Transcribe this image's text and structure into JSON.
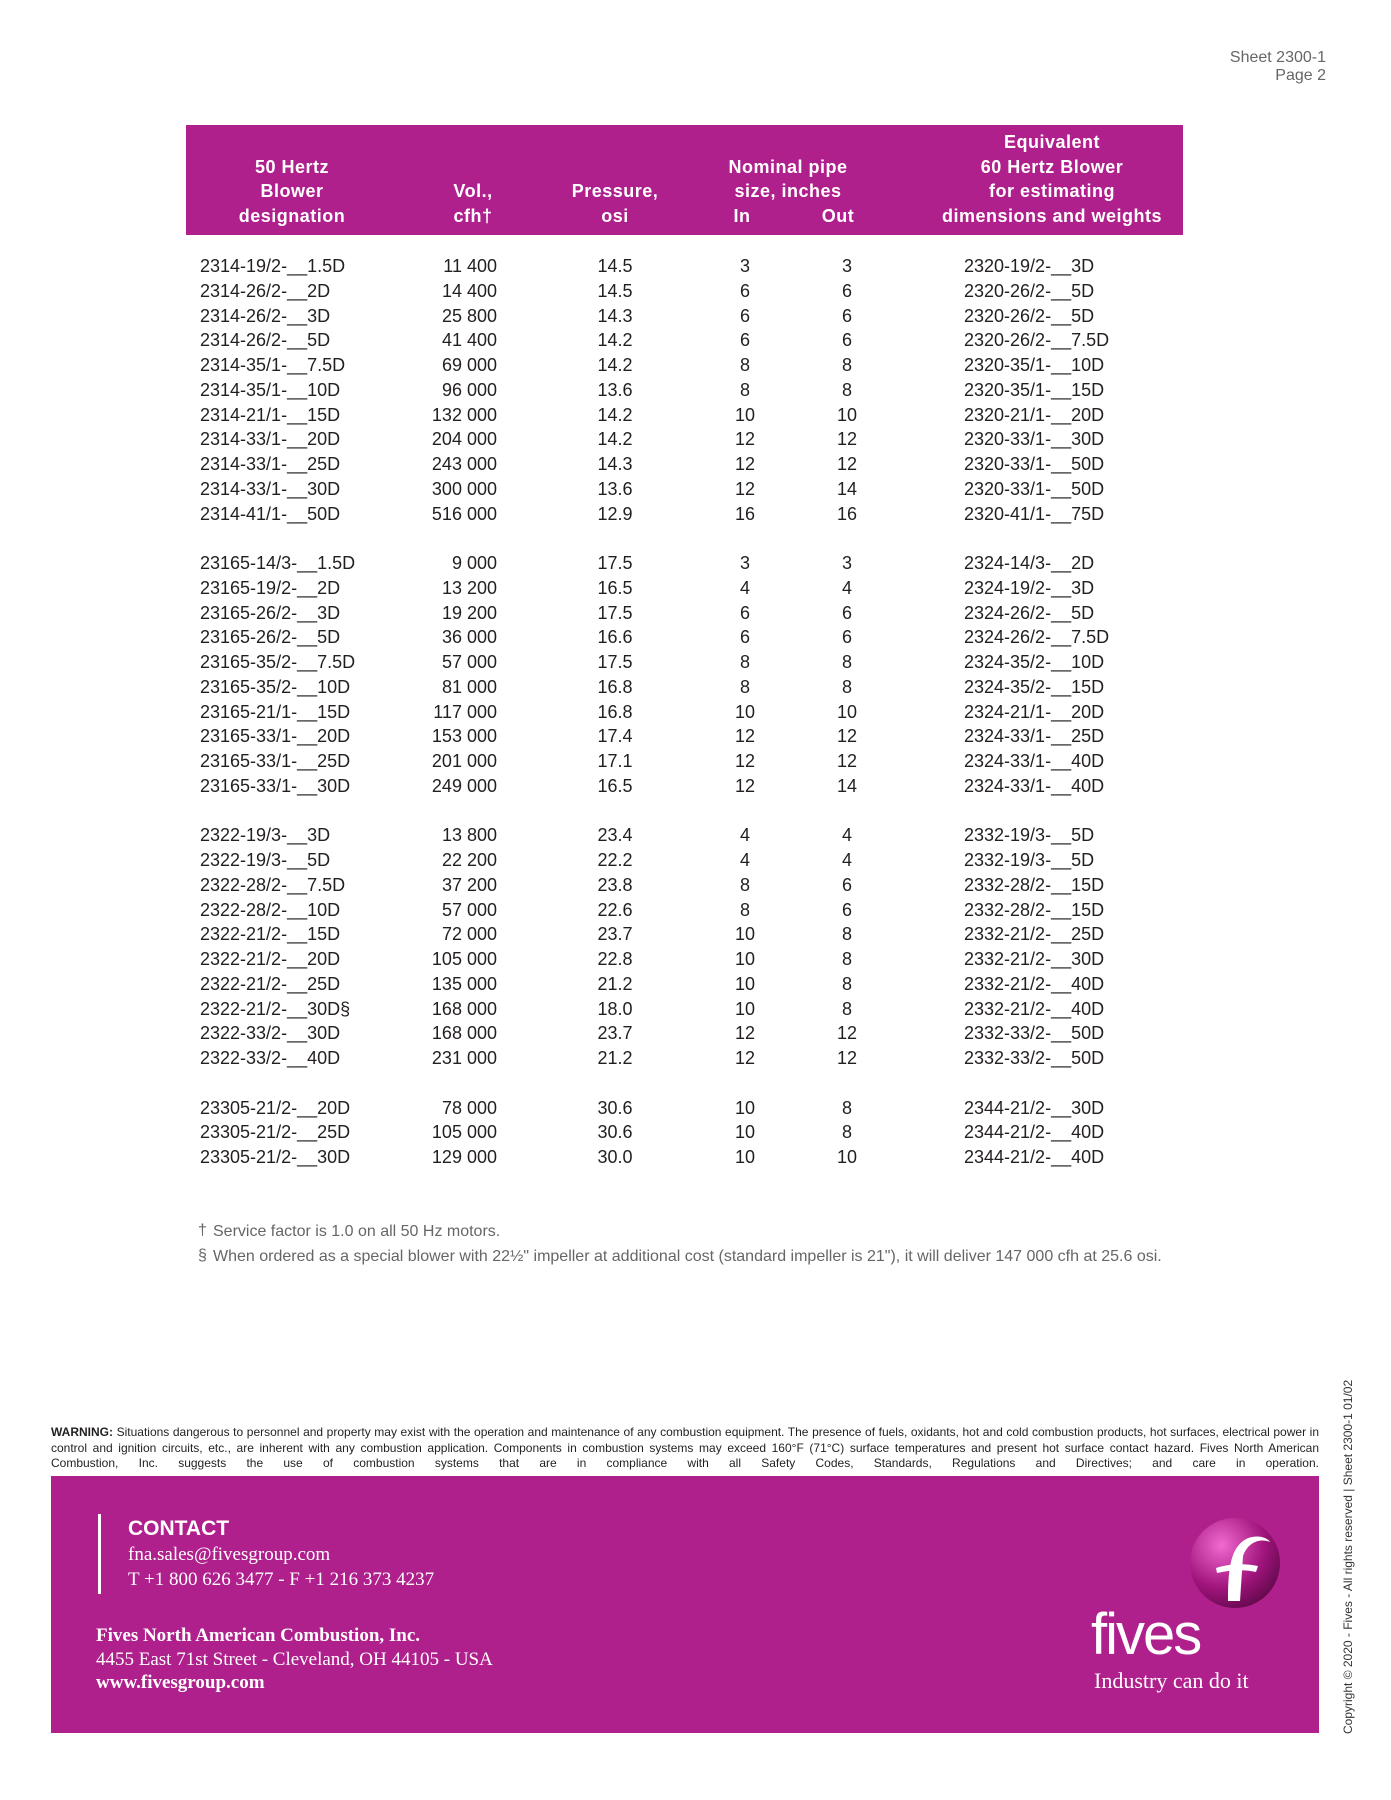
{
  "header": {
    "sheet": "Sheet 2300-1",
    "page": "Page 2"
  },
  "table": {
    "head": [
      [
        "50 Hertz",
        "Blower",
        "designation"
      ],
      [
        "Vol.,",
        "cfh†"
      ],
      [
        "Pressure,",
        "osi"
      ],
      [
        "Nominal pipe",
        "size, inches"
      ],
      [
        "Equivalent",
        "60 Hertz Blower",
        "for estimating",
        "dimensions and weights"
      ]
    ],
    "subhead": [
      "In",
      "Out"
    ],
    "groups": [
      [
        [
          "2314-19/2-__1.5D",
          "11 400",
          "14.5",
          "3",
          "3",
          "2320-19/2-__3D"
        ],
        [
          "2314-26/2-__2D",
          "14 400",
          "14.5",
          "6",
          "6",
          "2320-26/2-__5D"
        ],
        [
          "2314-26/2-__3D",
          "25 800",
          "14.3",
          "6",
          "6",
          "2320-26/2-__5D"
        ],
        [
          "2314-26/2-__5D",
          "41 400",
          "14.2",
          "6",
          "6",
          "2320-26/2-__7.5D"
        ],
        [
          "2314-35/1-__7.5D",
          "69 000",
          "14.2",
          "8",
          "8",
          "2320-35/1-__10D"
        ],
        [
          "2314-35/1-__10D",
          "96 000",
          "13.6",
          "8",
          "8",
          "2320-35/1-__15D"
        ],
        [
          "2314-21/1-__15D",
          "132 000",
          "14.2",
          "10",
          "10",
          "2320-21/1-__20D"
        ],
        [
          "2314-33/1-__20D",
          "204 000",
          "14.2",
          "12",
          "12",
          "2320-33/1-__30D"
        ],
        [
          "2314-33/1-__25D",
          "243 000",
          "14.3",
          "12",
          "12",
          "2320-33/1-__50D"
        ],
        [
          "2314-33/1-__30D",
          "300 000",
          "13.6",
          "12",
          "14",
          "2320-33/1-__50D"
        ],
        [
          "2314-41/1-__50D",
          "516 000",
          "12.9",
          "16",
          "16",
          "2320-41/1-__75D"
        ]
      ],
      [
        [
          "23165-14/3-__1.5D",
          "9 000",
          "17.5",
          "3",
          "3",
          "2324-14/3-__2D"
        ],
        [
          "23165-19/2-__2D",
          "13 200",
          "16.5",
          "4",
          "4",
          "2324-19/2-__3D"
        ],
        [
          "23165-26/2-__3D",
          "19 200",
          "17.5",
          "6",
          "6",
          "2324-26/2-__5D"
        ],
        [
          "23165-26/2-__5D",
          "36 000",
          "16.6",
          "6",
          "6",
          "2324-26/2-__7.5D"
        ],
        [
          "23165-35/2-__7.5D",
          "57 000",
          "17.5",
          "8",
          "8",
          "2324-35/2-__10D"
        ],
        [
          "23165-35/2-__10D",
          "81 000",
          "16.8",
          "8",
          "8",
          "2324-35/2-__15D"
        ],
        [
          "23165-21/1-__15D",
          "117 000",
          "16.8",
          "10",
          "10",
          "2324-21/1-__20D"
        ],
        [
          "23165-33/1-__20D",
          "153 000",
          "17.4",
          "12",
          "12",
          "2324-33/1-__25D"
        ],
        [
          "23165-33/1-__25D",
          "201 000",
          "17.1",
          "12",
          "12",
          "2324-33/1-__40D"
        ],
        [
          "23165-33/1-__30D",
          "249 000",
          "16.5",
          "12",
          "14",
          "2324-33/1-__40D"
        ]
      ],
      [
        [
          "2322-19/3-__3D",
          "13 800",
          "23.4",
          "4",
          "4",
          "2332-19/3-__5D"
        ],
        [
          "2322-19/3-__5D",
          "22 200",
          "22.2",
          "4",
          "4",
          "2332-19/3-__5D"
        ],
        [
          "2322-28/2-__7.5D",
          "37 200",
          "23.8",
          "8",
          "6",
          "2332-28/2-__15D"
        ],
        [
          "2322-28/2-__10D",
          "57 000",
          "22.6",
          "8",
          "6",
          "2332-28/2-__15D"
        ],
        [
          "2322-21/2-__15D",
          "72 000",
          "23.7",
          "10",
          "8",
          "2332-21/2-__25D"
        ],
        [
          "2322-21/2-__20D",
          "105 000",
          "22.8",
          "10",
          "8",
          "2332-21/2-__30D"
        ],
        [
          "2322-21/2-__25D",
          "135 000",
          "21.2",
          "10",
          "8",
          "2332-21/2-__40D"
        ],
        [
          "2322-21/2-__30D§",
          "168 000",
          "18.0",
          "10",
          "8",
          "2332-21/2-__40D"
        ],
        [
          "2322-33/2-__30D",
          "168 000",
          "23.7",
          "12",
          "12",
          "2332-33/2-__50D"
        ],
        [
          "2322-33/2-__40D",
          "231 000",
          "21.2",
          "12",
          "12",
          "2332-33/2-__50D"
        ]
      ],
      [
        [
          "23305-21/2-__20D",
          "78 000",
          "30.6",
          "10",
          "8",
          "2344-21/2-__30D"
        ],
        [
          "23305-21/2-__25D",
          "105 000",
          "30.6",
          "10",
          "8",
          "2344-21/2-__40D"
        ],
        [
          "23305-21/2-__30D",
          "129 000",
          "30.0",
          "10",
          "10",
          "2344-21/2-__40D"
        ]
      ]
    ]
  },
  "footnotes": [
    {
      "marker": "†",
      "text": "Service factor is 1.0 on all 50 Hz motors."
    },
    {
      "marker": "§",
      "text": "When ordered as a special blower with 22½\" impeller at additional cost (standard impeller is 21\"), it will deliver 147 000 cfh at 25.6 osi."
    }
  ],
  "warning": {
    "label": "WARNING:",
    "text": "Situations dangerous to personnel and property may exist with the operation and maintenance of any combustion equipment. The presence of fuels, oxidants, hot and cold combustion products, hot surfaces, electrical power in control and ignition circuits, etc., are inherent with any combustion application. Components in combustion systems may exceed 160°F (71°C) surface temperatures and present hot surface contact hazard. Fives North American Combustion, Inc. suggests the use of combustion systems that are in compliance with all Safety Codes, Standards, Regulations and Directives; and care in operation."
  },
  "footer": {
    "contact_title": "CONTACT",
    "email": "fna.sales@fivesgroup.com",
    "phone": "T +1 800 626 3477 - F +1 216 373 4237",
    "company": "Fives North American Combustion, Inc.",
    "address": "4455 East 71st Street - Cleveland, OH 44105 - USA",
    "website": "www.fivesgroup.com",
    "logo_text": "fives",
    "tagline": "Industry can do it"
  },
  "copyright": "Copyright © 2020 - Fives - All rights reserved | Sheet 2300-1 01/02"
}
